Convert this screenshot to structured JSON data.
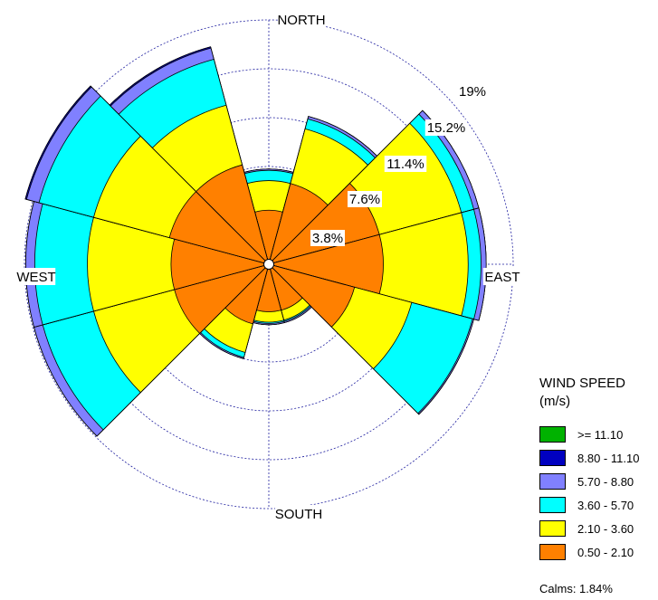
{
  "chart_data": {
    "type": "windrose",
    "directions": [
      "N",
      "NNE",
      "ENE",
      "E",
      "ESE",
      "SSE",
      "S",
      "SSW",
      "WSW",
      "W",
      "WNW",
      "NNW"
    ],
    "direction_labels": {
      "north": "NORTH",
      "east": "EAST",
      "south": "SOUTH",
      "west": "WEST"
    },
    "ring_labels": [
      "3.8%",
      "7.6%",
      "11.4%",
      "15.2%",
      "19%"
    ],
    "ring_values": [
      3.8,
      7.6,
      11.4,
      15.2,
      19.0
    ],
    "rmax": 19.0,
    "legend_title_line1": "WIND SPEED",
    "legend_title_line2": "(m/s)",
    "bins": [
      {
        "label": ">= 11.10",
        "color": "#00b200"
      },
      {
        "label": "8.80 - 11.10",
        "color": "#0000c0"
      },
      {
        "label": "5.70 - 8.80",
        "color": "#8080ff"
      },
      {
        "label": "3.60 - 5.70",
        "color": "#00ffff"
      },
      {
        "label": "2.10 - 3.60",
        "color": "#ffff00"
      },
      {
        "label": "0.50 - 2.10",
        "color": "#ff8000"
      }
    ],
    "cumulative_percent": [
      {
        "direction": "N",
        "values": [
          4.2,
          6.5,
          7.3,
          7.4,
          7.4,
          7.4
        ]
      },
      {
        "direction": "NNE",
        "values": [
          6.5,
          10.9,
          11.7,
          11.9,
          11.9,
          11.9
        ]
      },
      {
        "direction": "ENE",
        "values": [
          8.9,
          15.5,
          16.5,
          16.9,
          16.9,
          16.9
        ]
      },
      {
        "direction": "E",
        "values": [
          8.9,
          15.5,
          16.5,
          16.9,
          16.9,
          16.9
        ]
      },
      {
        "direction": "ESE",
        "values": [
          6.9,
          11.5,
          16.4,
          16.5,
          16.5,
          16.5
        ]
      },
      {
        "direction": "SSE",
        "values": [
          3.7,
          4.5,
          4.6,
          4.7,
          4.7,
          4.7
        ]
      },
      {
        "direction": "S",
        "values": [
          3.7,
          4.5,
          4.6,
          4.7,
          4.7,
          4.7
        ]
      },
      {
        "direction": "SSW",
        "values": [
          4.8,
          7.1,
          7.5,
          7.6,
          7.6,
          7.6
        ]
      },
      {
        "direction": "WSW",
        "values": [
          7.6,
          14.1,
          18.2,
          18.9,
          18.9,
          18.9
        ]
      },
      {
        "direction": "W",
        "values": [
          7.6,
          14.1,
          18.2,
          18.9,
          18.9,
          18.9
        ]
      },
      {
        "direction": "WNW",
        "values": [
          8.0,
          14.1,
          18.5,
          19.5,
          19.6,
          19.6
        ]
      },
      {
        "direction": "NNW",
        "values": [
          8.0,
          12.8,
          16.5,
          17.4,
          17.5,
          17.5
        ]
      }
    ],
    "calms": "Calms: 1.84%"
  }
}
